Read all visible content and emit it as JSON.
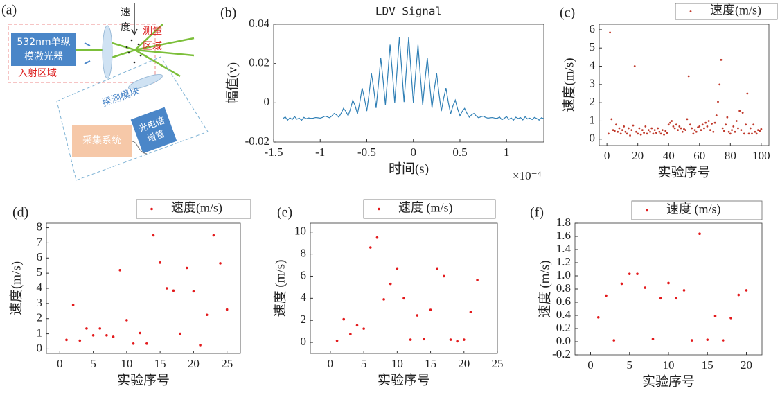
{
  "diagram": {
    "panel_label": "(a)",
    "velocity": [
      "速",
      "度"
    ],
    "measurement_region": [
      "测量",
      "区域"
    ],
    "laser": [
      "532nm单纵",
      "模激光器"
    ],
    "incidence_region": "入射区域",
    "detection_module": "探测模块",
    "pmt": [
      "光电倍",
      "增管"
    ],
    "acquisition": "采集系统"
  },
  "chart_data": [
    {
      "type": "line",
      "panel_label": "(b)",
      "title": "LDV Signal",
      "x_label": "时间(s)",
      "y_label": "幅值(v)",
      "x_multiplier": "×10⁻⁴",
      "color": "#2f7fb5",
      "x": [
        -1.4,
        -1.375,
        -1.35,
        -1.325,
        -1.3,
        -1.275,
        -1.25,
        -1.225,
        -1.2,
        -1.175,
        -1.15,
        -1.125,
        -1.1,
        -1.075,
        -1.05,
        -1.025,
        -1,
        -0.975,
        -0.95,
        -0.925,
        -0.9,
        -0.875,
        -0.85,
        -0.825,
        -0.8,
        -0.775,
        -0.75,
        -0.725,
        -0.7,
        -0.675,
        -0.65,
        -0.625,
        -0.6,
        -0.575,
        -0.55,
        -0.525,
        -0.5,
        -0.475,
        -0.45,
        -0.425,
        -0.4,
        -0.375,
        -0.35,
        -0.325,
        -0.3,
        -0.275,
        -0.25,
        -0.225,
        -0.2,
        -0.175,
        -0.15,
        -0.125,
        -0.1,
        -0.075,
        -0.05,
        -0.025,
        0,
        0.025,
        0.05,
        0.075,
        0.1,
        0.125,
        0.15,
        0.175,
        0.2,
        0.225,
        0.25,
        0.275,
        0.3,
        0.325,
        0.35,
        0.375,
        0.4,
        0.425,
        0.45,
        0.475,
        0.5,
        0.525,
        0.55,
        0.575,
        0.6,
        0.625,
        0.65,
        0.675,
        0.7,
        0.725,
        0.75,
        0.775,
        0.8,
        0.825,
        0.85,
        0.875,
        0.9,
        0.925,
        0.95,
        0.975,
        1,
        1.025,
        1.05,
        1.075,
        1.1,
        1.125,
        1.15,
        1.175,
        1.2,
        1.225,
        1.25,
        1.275,
        1.3,
        1.325,
        1.35,
        1.375,
        1.4
      ],
      "values": [
        -0.008,
        -0.0072,
        -0.0088,
        -0.0076,
        -0.0085,
        -0.007,
        -0.0083,
        -0.0078,
        -0.0089,
        -0.0074,
        -0.0081,
        -0.0077,
        -0.0079,
        -0.0078,
        -0.0075,
        -0.0076,
        -0.0078,
        -0.0074,
        -0.0068,
        -0.0071,
        -0.0076,
        -0.0067,
        -0.0054,
        -0.0061,
        -0.0073,
        -0.0053,
        -0.0028,
        -0.0043,
        -0.0066,
        -0.0031,
        0.0014,
        -0.0015,
        -0.0056,
        0.0003,
        0.0075,
        0.0023,
        -0.0042,
        0.0046,
        0.0149,
        0.007,
        -0.0026,
        0.0094,
        0.0229,
        0.0116,
        -0.0011,
        0.0137,
        0.0296,
        0.0153,
        0,
        0.0165,
        0.0335,
        0.0171,
        0.0004,
        0.0171,
        0.0335,
        0.0165,
        0,
        0.0153,
        0.0296,
        0.0137,
        -0.0011,
        0.0116,
        0.0229,
        0.0094,
        -0.0026,
        0.007,
        0.0149,
        0.0046,
        -0.0042,
        0.0023,
        0.0075,
        0.0003,
        -0.0056,
        -0.0015,
        0.0014,
        -0.0031,
        -0.0066,
        -0.0043,
        -0.0028,
        -0.0053,
        -0.0073,
        -0.0061,
        -0.0054,
        -0.0067,
        -0.0076,
        -0.0071,
        -0.0068,
        -0.0074,
        -0.0078,
        -0.0076,
        -0.0075,
        -0.0078,
        -0.0079,
        -0.0072,
        -0.0086,
        -0.0079,
        -0.007,
        -0.0084,
        -0.0077,
        -0.0088,
        -0.0073,
        -0.008,
        -0.0075,
        -0.0087,
        -0.0071,
        -0.0082,
        -0.0078,
        -0.0085,
        -0.0074,
        -0.008,
        -0.0088,
        -0.0076,
        -0.0081
      ],
      "xlim": [
        -1.5,
        1.4
      ],
      "ylim": [
        -0.02,
        0.04
      ],
      "xticks": [
        -1.5,
        -1,
        -0.5,
        0,
        0.5,
        1
      ],
      "yticks": [
        -0.02,
        0,
        0.02,
        0.04
      ]
    },
    {
      "type": "scatter",
      "panel_label": "(c)",
      "x_label": "实验序号",
      "y_label": "速度(m/s)",
      "x": [
        1,
        2,
        3,
        4,
        5,
        6,
        7,
        8,
        9,
        10,
        11,
        12,
        13,
        14,
        15,
        16,
        17,
        18,
        19,
        20,
        21,
        22,
        23,
        24,
        25,
        26,
        27,
        28,
        29,
        30,
        31,
        32,
        33,
        34,
        35,
        36,
        37,
        38,
        39,
        40,
        41,
        42,
        43,
        44,
        45,
        46,
        47,
        48,
        49,
        50,
        51,
        52,
        53,
        54,
        55,
        56,
        57,
        58,
        59,
        60,
        61,
        62,
        63,
        64,
        65,
        66,
        67,
        68,
        69,
        70,
        71,
        72,
        73,
        74,
        75,
        76,
        77,
        78,
        79,
        80,
        81,
        82,
        83,
        84,
        85,
        86,
        87,
        88,
        89,
        90,
        91,
        92,
        93,
        94,
        95,
        96,
        97,
        98,
        99,
        100
      ],
      "series": [
        {
          "name": "速度(m/s)",
          "color": "#c0392b",
          "values": [
            0.3,
            5.85,
            1.1,
            0.5,
            0.45,
            0.8,
            0.4,
            0.6,
            0.3,
            0.5,
            0.7,
            0.4,
            0.3,
            0.6,
            0.2,
            0.5,
            0.75,
            4.0,
            0.4,
            0.3,
            0.6,
            0.25,
            0.5,
            0.35,
            0.7,
            0.3,
            0.5,
            0.4,
            0.6,
            0.3,
            0.5,
            0.35,
            0.6,
            0.4,
            0.3,
            0.5,
            0.25,
            0.45,
            0.35,
            0.8,
            0.9,
            1.0,
            0.7,
            0.6,
            0.8,
            0.5,
            0.7,
            0.6,
            0.4,
            0.55,
            0.5,
            1.1,
            3.45,
            0.8,
            0.6,
            0.3,
            0.5,
            0.4,
            0.65,
            0.7,
            0.5,
            0.8,
            0.6,
            0.9,
            0.7,
            1.0,
            0.5,
            0.85,
            0.4,
            0.9,
            1.3,
            2.05,
            3.0,
            4.35,
            0.6,
            0.45,
            0.8,
            1.2,
            0.4,
            0.3,
            0.5,
            0.7,
            0.4,
            1.0,
            0.6,
            1.55,
            0.5,
            1.45,
            0.3,
            0.8,
            2.5,
            0.3,
            0.6,
            0.3,
            0.8,
            0.4,
            0.3,
            0.5,
            0.45,
            0.55
          ]
        }
      ],
      "xlim": [
        -5,
        105
      ],
      "ylim": [
        -0.35,
        6.3
      ],
      "xticks": [
        0,
        20,
        40,
        60,
        80,
        100
      ],
      "yticks": [
        0,
        1,
        2,
        3,
        4,
        5,
        6
      ]
    },
    {
      "type": "scatter",
      "panel_label": "(d)",
      "x_label": "实验序号",
      "y_label": "速度(m/s)",
      "x": [
        1,
        2,
        3,
        4,
        5,
        6,
        7,
        8,
        9,
        10,
        11,
        12,
        13,
        14,
        15,
        16,
        17,
        18,
        19,
        20,
        21,
        22,
        23,
        24,
        25
      ],
      "series": [
        {
          "name": "速度(m/s)",
          "color": "#e31a1c",
          "values": [
            0.6,
            2.9,
            0.55,
            1.35,
            0.9,
            1.35,
            0.9,
            0.8,
            5.2,
            1.9,
            0.35,
            1.05,
            0.35,
            7.5,
            5.7,
            4.0,
            3.85,
            1.0,
            5.35,
            3.8,
            0.25,
            2.25,
            7.5,
            5.65,
            2.6
          ]
        }
      ],
      "xlim": [
        -2,
        27
      ],
      "ylim": [
        -0.3,
        8.3
      ],
      "xticks": [
        0,
        5,
        10,
        15,
        20,
        25
      ],
      "yticks": [
        0,
        1,
        2,
        3,
        4,
        5,
        6,
        7,
        8
      ]
    },
    {
      "type": "scatter",
      "panel_label": "(e)",
      "x_label": "实验序号",
      "y_label": "速度 (m/s)",
      "x": [
        1,
        2,
        3,
        4,
        5,
        6,
        7,
        8,
        9,
        10,
        11,
        12,
        13,
        14,
        15,
        16,
        17,
        18,
        19,
        20,
        21,
        22
      ],
      "series": [
        {
          "name": "速度 (m/s)",
          "color": "#e31a1c",
          "values": [
            0.15,
            2.1,
            0.75,
            1.55,
            1.25,
            8.6,
            9.5,
            3.9,
            5.3,
            6.7,
            4.0,
            0.25,
            2.45,
            0.3,
            2.95,
            6.7,
            6.0,
            0.25,
            0.1,
            0.25,
            2.75,
            5.65
          ]
        }
      ],
      "xlim": [
        -3,
        25
      ],
      "ylim": [
        -1,
        10.8
      ],
      "xticks": [
        0,
        5,
        10,
        15,
        20,
        25
      ],
      "yticks": [
        0,
        2,
        4,
        6,
        8,
        10
      ]
    },
    {
      "type": "scatter",
      "panel_label": "(f)",
      "x_label": "实验序号",
      "y_label": "速度 (m/s)",
      "x": [
        1,
        2,
        3,
        4,
        5,
        6,
        7,
        8,
        9,
        10,
        11,
        12,
        13,
        14,
        15,
        16,
        17,
        18,
        19,
        20
      ],
      "series": [
        {
          "name": "速度 (m/s)",
          "color": "#e31a1c",
          "values": [
            0.37,
            0.7,
            0.02,
            0.88,
            1.03,
            1.03,
            0.82,
            0.04,
            0.66,
            0.89,
            0.66,
            0.78,
            0.02,
            1.64,
            0.03,
            0.39,
            0.02,
            0.36,
            0.71,
            0.78
          ]
        }
      ],
      "xlim": [
        -2,
        22
      ],
      "ylim": [
        -0.2,
        1.8
      ],
      "xticks": [
        0,
        5,
        10,
        15,
        20
      ],
      "yticks": [
        -0.2,
        {
          "value": 0,
          "label": "0.0"
        },
        0.2,
        0.4,
        0.6,
        0.8,
        {
          "value": 1,
          "label": "1.0"
        },
        1.2,
        1.4,
        1.6,
        1.8
      ]
    }
  ]
}
